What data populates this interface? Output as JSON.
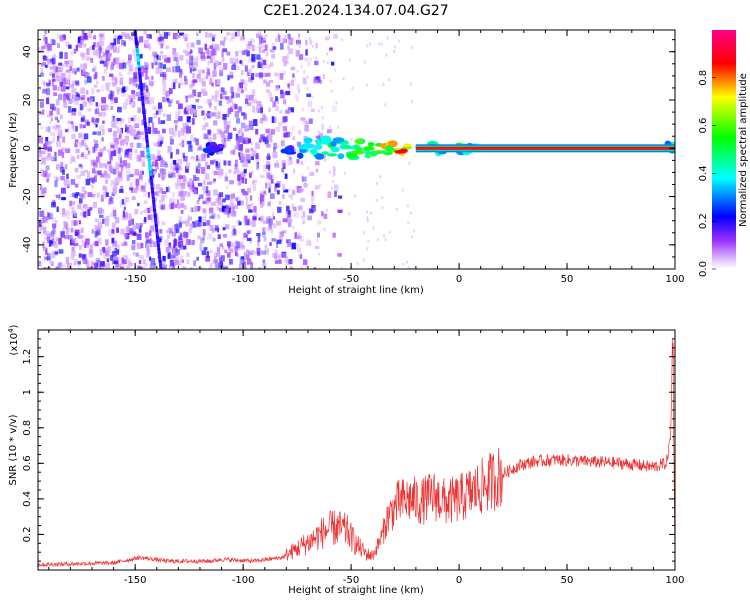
{
  "title": "C2E1.2024.134.07.04.G27",
  "chart_data": [
    {
      "type": "heatmap",
      "xlabel": "Height of straight line (km)",
      "ylabel": "Frequency (Hz)",
      "xlim": [
        -195,
        100
      ],
      "ylim": [
        -50,
        49
      ],
      "xticks": [
        -150,
        -100,
        -50,
        0,
        50,
        100
      ],
      "yticks": [
        -40,
        -20,
        0,
        20,
        40
      ],
      "grid": false,
      "colorbar": {
        "label": "Normalized spectral amplitude",
        "range": [
          0,
          1
        ],
        "ticks": [
          0.0,
          0.2,
          0.4,
          0.6,
          0.8
        ],
        "colors": [
          "#ffffff",
          "#9b30ff",
          "#0000ff",
          "#00ffff",
          "#00ff00",
          "#ffff00",
          "#ff0000",
          "#ff0088"
        ]
      },
      "features": {
        "scatter_region": [
          -195,
          -75
        ],
        "sloped_streak": {
          "x_top": -150,
          "x_bottom": -138
        },
        "tone_frequency_hz": 0,
        "tone_onset_km": -75,
        "tone_saturated_from_km": -20
      }
    },
    {
      "type": "line",
      "xlabel": "Height of straight line (km)",
      "ylabel": "SNR (10 * v/v)",
      "multiplier_label": "(x10",
      "multiplier_exp": "4",
      "multiplier_close": ")",
      "xlim": [
        -195,
        100
      ],
      "ylim": [
        0,
        1.35
      ],
      "xticks": [
        -150,
        -100,
        -50,
        0,
        50,
        100
      ],
      "yticks": [
        0.2,
        0.4,
        0.6,
        0.8,
        1.0,
        1.2
      ],
      "series_color": "#ee3333",
      "envelope": [
        {
          "x": -195,
          "y": 0.03
        },
        {
          "x": -160,
          "y": 0.04
        },
        {
          "x": -148,
          "y": 0.07
        },
        {
          "x": -135,
          "y": 0.05
        },
        {
          "x": -115,
          "y": 0.05
        },
        {
          "x": -110,
          "y": 0.06
        },
        {
          "x": -95,
          "y": 0.05
        },
        {
          "x": -82,
          "y": 0.07
        },
        {
          "x": -75,
          "y": 0.12
        },
        {
          "x": -68,
          "y": 0.17
        },
        {
          "x": -62,
          "y": 0.22
        },
        {
          "x": -57,
          "y": 0.24
        },
        {
          "x": -52,
          "y": 0.22
        },
        {
          "x": -48,
          "y": 0.15
        },
        {
          "x": -43,
          "y": 0.09
        },
        {
          "x": -40,
          "y": 0.08
        },
        {
          "x": -36,
          "y": 0.18
        },
        {
          "x": -33,
          "y": 0.3
        },
        {
          "x": -28,
          "y": 0.38
        },
        {
          "x": -22,
          "y": 0.4
        },
        {
          "x": -18,
          "y": 0.38
        },
        {
          "x": -12,
          "y": 0.42
        },
        {
          "x": -6,
          "y": 0.38
        },
        {
          "x": 0,
          "y": 0.4
        },
        {
          "x": 8,
          "y": 0.45
        },
        {
          "x": 15,
          "y": 0.5
        },
        {
          "x": 22,
          "y": 0.55
        },
        {
          "x": 28,
          "y": 0.59
        },
        {
          "x": 35,
          "y": 0.61
        },
        {
          "x": 45,
          "y": 0.62
        },
        {
          "x": 60,
          "y": 0.61
        },
        {
          "x": 75,
          "y": 0.6
        },
        {
          "x": 90,
          "y": 0.58
        },
        {
          "x": 96,
          "y": 0.6
        },
        {
          "x": 98,
          "y": 0.75
        },
        {
          "x": 99,
          "y": 1.3
        },
        {
          "x": 100,
          "y": 0.05
        }
      ]
    }
  ]
}
